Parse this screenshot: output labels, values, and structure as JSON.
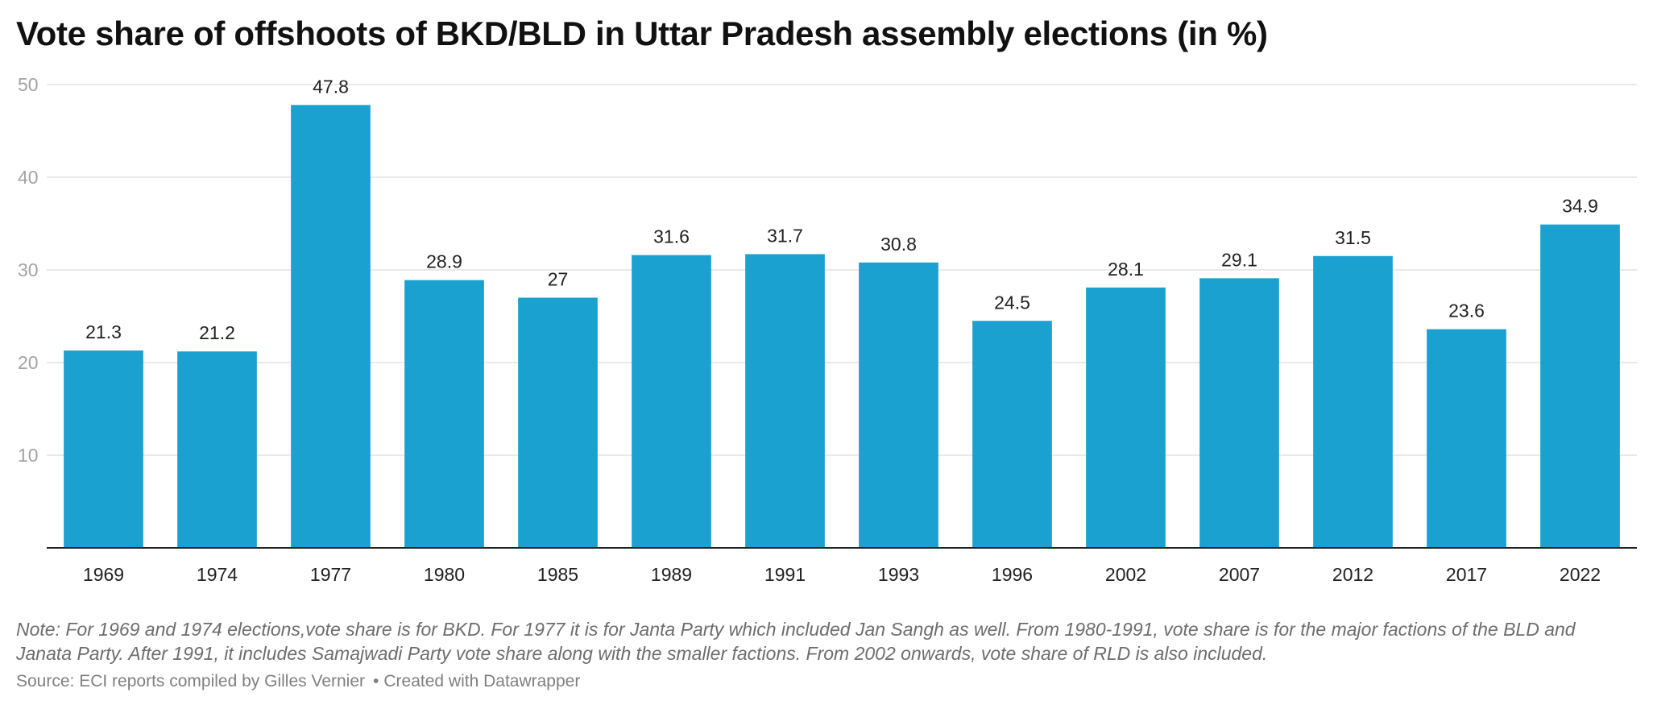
{
  "chart_data": {
    "type": "bar",
    "title": "Vote share of offshoots of BKD/BLD in Uttar Pradesh assembly elections (in %)",
    "xlabel": "",
    "ylabel": "",
    "categories": [
      "1969",
      "1974",
      "1977",
      "1980",
      "1985",
      "1989",
      "1991",
      "1993",
      "1996",
      "2002",
      "2007",
      "2012",
      "2017",
      "2022"
    ],
    "values": [
      21.3,
      21.2,
      47.8,
      28.9,
      27,
      31.6,
      31.7,
      30.8,
      24.5,
      28.1,
      29.1,
      31.5,
      23.6,
      34.9
    ],
    "value_labels": [
      "21.3",
      "21.2",
      "47.8",
      "28.9",
      "27",
      "31.6",
      "31.7",
      "30.8",
      "24.5",
      "28.1",
      "29.1",
      "31.5",
      "23.6",
      "34.9"
    ],
    "ylim": [
      0,
      50
    ],
    "yticks": [
      "10",
      "20",
      "30",
      "40",
      "50"
    ],
    "grid": true,
    "legend": "none",
    "colors": {
      "bar": "#1aa1cf",
      "grid": "#e2e2e2",
      "axis": "#222222",
      "tick_text": "#a3a3a3"
    }
  },
  "footer": {
    "note": "Note: For 1969 and 1974 elections,vote share is for BKD. For 1977 it is for Janta Party which included Jan Sangh as well. From 1980-1991, vote share is for the major factions of the BLD and Janata Party. After 1991, it includes Samajwadi Party vote share along with the smaller factions. From 2002 onwards, vote share of RLD is also included.",
    "source": "Source: ECI reports compiled by Gilles Vernier",
    "separator": "•",
    "credit": "Created with Datawrapper"
  }
}
